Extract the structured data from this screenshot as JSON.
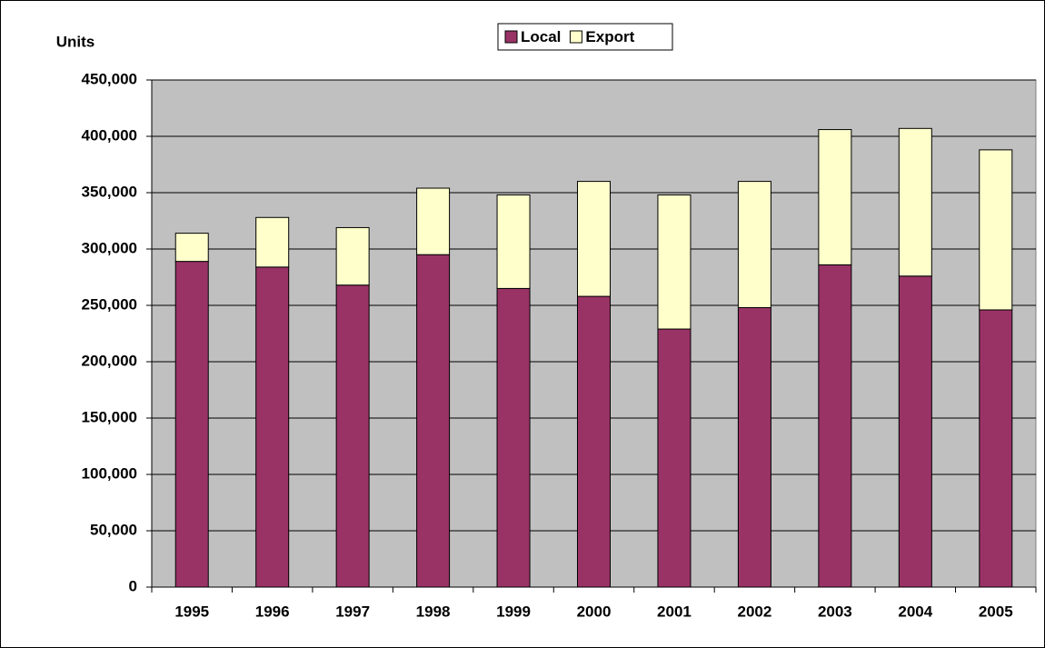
{
  "chart_data": {
    "type": "stacked_bar",
    "y_label": "Units",
    "categories": [
      "1995",
      "1996",
      "1997",
      "1998",
      "1999",
      "2000",
      "2001",
      "2002",
      "2003",
      "2004",
      "2005"
    ],
    "series": [
      {
        "name": "Local",
        "color": "#993366",
        "values": [
          289000,
          284000,
          268000,
          295000,
          265000,
          258000,
          229000,
          248000,
          286000,
          276000,
          246000
        ]
      },
      {
        "name": "Export",
        "color": "#ffffcc",
        "values": [
          25000,
          44000,
          51000,
          59000,
          83000,
          102000,
          119000,
          112000,
          120000,
          131000,
          142000
        ]
      }
    ],
    "ylim": [
      0,
      450000
    ],
    "yticks": [
      0,
      {
        "value": 50000,
        "label": "50,000"
      },
      {
        "value": 100000,
        "label": "100,000"
      },
      {
        "value": 150000,
        "label": "150,000"
      },
      {
        "value": 200000,
        "label": "200,000"
      },
      {
        "value": 250000,
        "label": "250,000"
      },
      {
        "value": 300000,
        "label": "300,000"
      },
      {
        "value": 350000,
        "label": "350,000"
      },
      {
        "value": 400000,
        "label": "400,000"
      },
      {
        "value": 450000,
        "label": "450,000"
      }
    ],
    "grid": true,
    "legend": "top"
  }
}
